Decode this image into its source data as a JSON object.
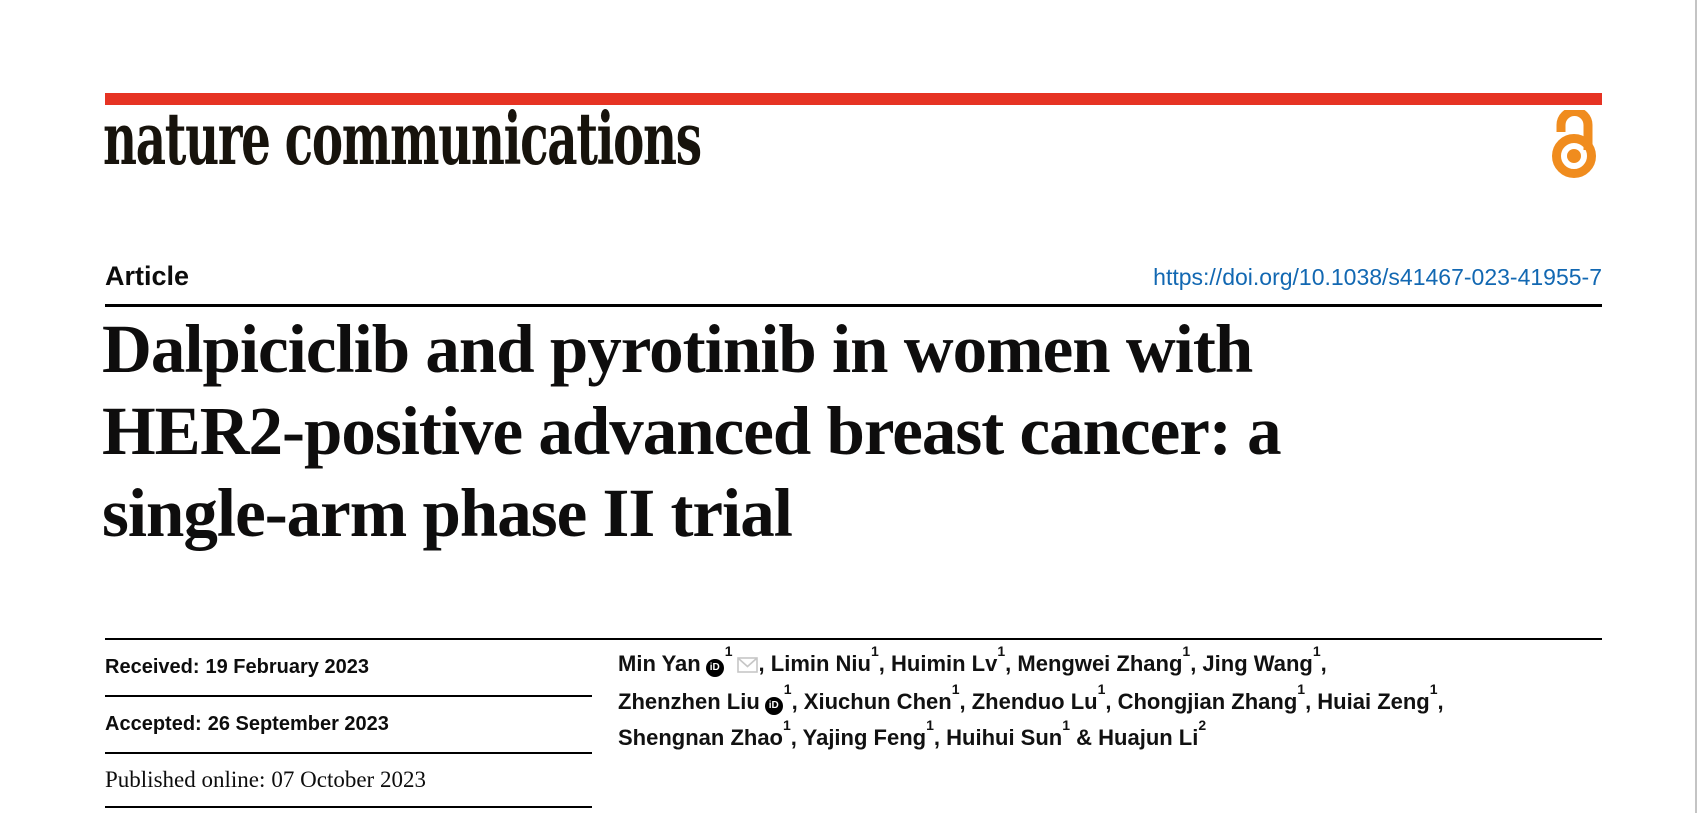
{
  "header": {
    "journal": "nature communications"
  },
  "article_bar": {
    "type_label": "Article",
    "doi": "https://doi.org/10.1038/s41467-023-41955-7"
  },
  "title": {
    "lines": [
      "Dalpiciclib and pyrotinib in women with",
      "HER2-positive advanced breast cancer: a",
      "single-arm phase II trial"
    ]
  },
  "dates": {
    "rows": [
      {
        "label": "Received:",
        "value": "19 February 2023",
        "style": "sans"
      },
      {
        "label": "Accepted:",
        "value": "26 September 2023",
        "style": "sans"
      },
      {
        "label": "Published online:",
        "value": "07 October 2023",
        "style": "serif"
      }
    ]
  },
  "authors": {
    "items": [
      {
        "name": "Min Yan",
        "sup": "1",
        "orcid": true,
        "email": true,
        "sep": ", "
      },
      {
        "name": "Limin Niu",
        "sup": "1",
        "sep": ", "
      },
      {
        "name": "Huimin Lv",
        "sup": "1",
        "sep": ", "
      },
      {
        "name": "Mengwei Zhang",
        "sup": "1",
        "sep": ", "
      },
      {
        "name": "Jing Wang",
        "sup": "1",
        "sep": ",",
        "br": true
      },
      {
        "name": "Zhenzhen Liu",
        "sup": "1",
        "orcid": true,
        "sep": ", "
      },
      {
        "name": "Xiuchun Chen",
        "sup": "1",
        "sep": ", "
      },
      {
        "name": "Zhenduo Lu",
        "sup": "1",
        "sep": ", "
      },
      {
        "name": "Chongjian Zhang",
        "sup": "1",
        "sep": ", "
      },
      {
        "name": "Huiai Zeng",
        "sup": "1",
        "sep": ",",
        "br": true
      },
      {
        "name": "Shengnan Zhao",
        "sup": "1",
        "sep": ", "
      },
      {
        "name": "Yajing Feng",
        "sup": "1",
        "sep": ", "
      },
      {
        "name": "Huihui Sun",
        "sup": "1",
        "sep": " & "
      },
      {
        "name": "Huajun Li",
        "sup": "2",
        "sep": ""
      }
    ]
  },
  "icons": {
    "orcid_glyph": "iD"
  },
  "colors": {
    "accent_red": "#e63323",
    "open_access_orange": "#f08c1e",
    "link_blue": "#1268b2"
  }
}
